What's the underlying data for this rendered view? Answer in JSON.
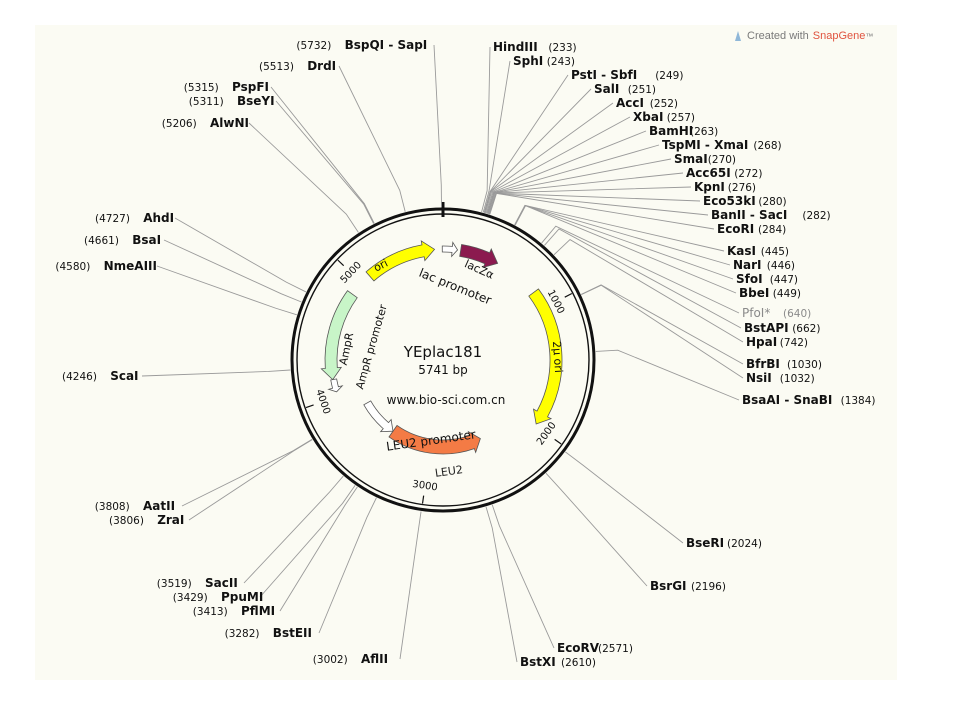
{
  "credit": {
    "prefix": "Created with",
    "brand": "SnapGene",
    "tm": "™"
  },
  "colors": {
    "panel": "#fbfbf3",
    "backbone": "#111111",
    "leader": "#9a9a9a",
    "ori": "#ffff00",
    "twomicron_ori": "#ffff00",
    "lacZa": "#8b1a4f",
    "ampr": "#c8f5c8",
    "promoter": "#ffffff",
    "leu2": "#f47b45",
    "dim_label": "#8a8a8a"
  },
  "plasmid": {
    "name": "YEplac181",
    "length_bp": 5741,
    "length_label": "5741 bp",
    "watermark": "www.bio-sci.com.cn",
    "ticks": [
      {
        "bp": 1000,
        "label": "1000"
      },
      {
        "bp": 2000,
        "label": "2000"
      },
      {
        "bp": 3000,
        "label": "3000"
      },
      {
        "bp": 4000,
        "label": "4000"
      },
      {
        "bp": 5000,
        "label": "5000"
      }
    ]
  },
  "features": [
    {
      "name": "ori",
      "label": "ori",
      "type": "rep_origin",
      "start": 5085,
      "end": 5671,
      "strand": 1,
      "color_key": "ori"
    },
    {
      "name": "lacZa",
      "label": "lacZα",
      "type": "CDS",
      "start": 146,
      "end": 470,
      "strand": 1,
      "color_key": "lacZa"
    },
    {
      "name": "lac-promoter",
      "label": "lac promoter",
      "type": "promoter",
      "start": 5735,
      "end": 120,
      "strand": 1,
      "color_key": "promoter"
    },
    {
      "name": "2u-ori",
      "label": "2μ ori",
      "type": "rep_origin",
      "start": 850,
      "end": 1985,
      "strand": 1,
      "color_key": "twomicron_ori"
    },
    {
      "name": "leu2",
      "label": "LEU2",
      "type": "CDS",
      "start": 2465,
      "end": 3430,
      "strand": -1,
      "color_key": "leu2"
    },
    {
      "name": "leu2-promoter",
      "label": "LEU2 promoter",
      "type": "promoter",
      "start": 3430,
      "end": 3835,
      "strand": -1,
      "color_key": "promoter"
    },
    {
      "name": "ampr",
      "label": "AmpR",
      "type": "CDS",
      "start": 4145,
      "end": 4880,
      "strand": -1,
      "color_key": "ampr"
    },
    {
      "name": "ampr-promoter",
      "label": "AmpR promoter",
      "type": "promoter",
      "start": 4040,
      "end": 4145,
      "strand": -1,
      "color_key": "promoter"
    }
  ],
  "enzymes": [
    {
      "name": "HindIII",
      "pos": "233",
      "bp": 233,
      "side": "right",
      "dim": false
    },
    {
      "name": "SphI",
      "pos": "243",
      "bp": 243,
      "side": "right",
      "dim": false
    },
    {
      "name": "PstI - SbfI",
      "pos": "249",
      "bp": 249,
      "side": "right",
      "dim": false
    },
    {
      "name": "SalI",
      "pos": "251",
      "bp": 251,
      "side": "right",
      "dim": false
    },
    {
      "name": "AccI",
      "pos": "252",
      "bp": 252,
      "side": "right",
      "dim": false
    },
    {
      "name": "XbaI",
      "pos": "257",
      "bp": 257,
      "side": "right",
      "dim": false
    },
    {
      "name": "BamHI",
      "pos": "263",
      "bp": 263,
      "side": "right",
      "dim": false
    },
    {
      "name": "TspMI - XmaI",
      "pos": "268",
      "bp": 268,
      "side": "right",
      "dim": false
    },
    {
      "name": "SmaI",
      "pos": "270",
      "bp": 270,
      "side": "right",
      "dim": false
    },
    {
      "name": "Acc65I",
      "pos": "272",
      "bp": 272,
      "side": "right",
      "dim": false
    },
    {
      "name": "KpnI",
      "pos": "276",
      "bp": 276,
      "side": "right",
      "dim": false
    },
    {
      "name": "Eco53kI",
      "pos": "280",
      "bp": 280,
      "side": "right",
      "dim": false
    },
    {
      "name": "BanII - SacI",
      "pos": "282",
      "bp": 282,
      "side": "right",
      "dim": false
    },
    {
      "name": "EcoRI",
      "pos": "284",
      "bp": 284,
      "side": "right",
      "dim": false
    },
    {
      "name": "KasI",
      "pos": "445",
      "bp": 445,
      "side": "right",
      "dim": false
    },
    {
      "name": "NarI",
      "pos": "446",
      "bp": 446,
      "side": "right",
      "dim": false
    },
    {
      "name": "SfoI",
      "pos": "447",
      "bp": 447,
      "side": "right",
      "dim": false
    },
    {
      "name": "BbeI",
      "pos": "449",
      "bp": 449,
      "side": "right",
      "dim": false
    },
    {
      "name": "PfoI*",
      "pos": "640",
      "bp": 640,
      "side": "right",
      "dim": true
    },
    {
      "name": "BstAPI",
      "pos": "662",
      "bp": 662,
      "side": "right",
      "dim": false
    },
    {
      "name": "HpaI",
      "pos": "742",
      "bp": 742,
      "side": "right",
      "dim": false
    },
    {
      "name": "BfrBI",
      "pos": "1030",
      "bp": 1030,
      "side": "right",
      "dim": false
    },
    {
      "name": "NsiI",
      "pos": "1032",
      "bp": 1032,
      "side": "right",
      "dim": false
    },
    {
      "name": "BsaAI - SnaBI",
      "pos": "1384",
      "bp": 1384,
      "side": "right",
      "dim": false
    },
    {
      "name": "BseRI",
      "pos": "2024",
      "bp": 2024,
      "side": "right",
      "dim": false
    },
    {
      "name": "BsrGI",
      "pos": "2196",
      "bp": 2196,
      "side": "right",
      "dim": false
    },
    {
      "name": "EcoRV",
      "pos": "2571",
      "bp": 2571,
      "side": "right",
      "dim": false
    },
    {
      "name": "BstXI",
      "pos": "2610",
      "bp": 2610,
      "side": "right",
      "dim": false
    },
    {
      "name": "BspQI - SapI",
      "pos": "5732",
      "bp": 5732,
      "side": "left",
      "dim": false
    },
    {
      "name": "DrdI",
      "pos": "5513",
      "bp": 5513,
      "side": "left",
      "dim": false
    },
    {
      "name": "PspFI",
      "pos": "5315",
      "bp": 5315,
      "side": "left",
      "dim": false
    },
    {
      "name": "BseYI",
      "pos": "5311",
      "bp": 5311,
      "side": "left",
      "dim": false
    },
    {
      "name": "AlwNI",
      "pos": "5206",
      "bp": 5206,
      "side": "left",
      "dim": false
    },
    {
      "name": "AhdI",
      "pos": "4727",
      "bp": 4727,
      "side": "left",
      "dim": false
    },
    {
      "name": "BsaI",
      "pos": "4661",
      "bp": 4661,
      "side": "left",
      "dim": false
    },
    {
      "name": "NmeAIII",
      "pos": "4580",
      "bp": 4580,
      "side": "left",
      "dim": false
    },
    {
      "name": "ScaI",
      "pos": "4246",
      "bp": 4246,
      "side": "left",
      "dim": false
    },
    {
      "name": "AatII",
      "pos": "3808",
      "bp": 3808,
      "side": "left",
      "dim": false
    },
    {
      "name": "ZraI",
      "pos": "3806",
      "bp": 3806,
      "side": "left",
      "dim": false
    },
    {
      "name": "SacII",
      "pos": "3519",
      "bp": 3519,
      "side": "left",
      "dim": false
    },
    {
      "name": "PpuMI",
      "pos": "3429",
      "bp": 3429,
      "side": "left",
      "dim": false
    },
    {
      "name": "PflMI",
      "pos": "3413",
      "bp": 3413,
      "side": "left",
      "dim": false
    },
    {
      "name": "BstEII",
      "pos": "3282",
      "bp": 3282,
      "side": "left",
      "dim": false
    },
    {
      "name": "AflII",
      "pos": "3002",
      "bp": 3002,
      "side": "left",
      "dim": false
    }
  ]
}
